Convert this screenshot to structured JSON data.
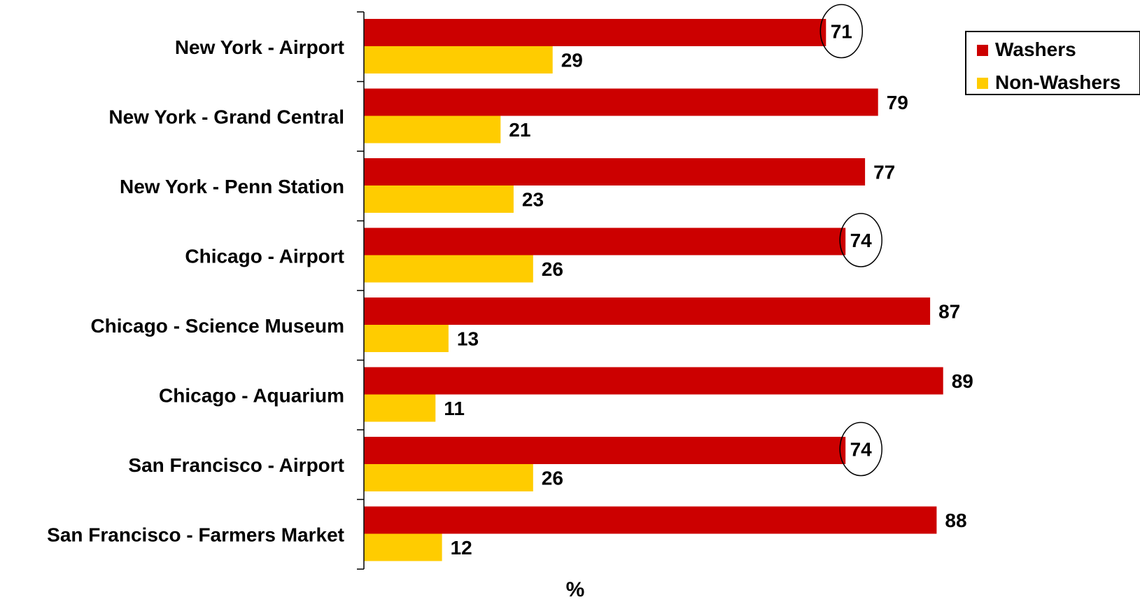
{
  "chart_data": {
    "type": "bar",
    "orientation": "horizontal",
    "categories": [
      "New York - Airport",
      "New York - Grand Central",
      "New York - Penn Station",
      "Chicago - Airport",
      "Chicago - Science Museum",
      "Chicago - Aquarium",
      "San Francisco - Airport",
      "San Francisco - Farmers Market"
    ],
    "series": [
      {
        "name": "Washers",
        "color": "#CC0000",
        "values": [
          71,
          79,
          77,
          74,
          87,
          89,
          74,
          88
        ]
      },
      {
        "name": "Non-Washers",
        "color": "#FFCC00",
        "values": [
          29,
          21,
          23,
          26,
          13,
          11,
          26,
          12
        ]
      }
    ],
    "highlighted": {
      "series": "Washers",
      "categories": [
        "New York - Airport",
        "Chicago - Airport",
        "San Francisco - Airport"
      ]
    },
    "xlabel": "%",
    "ylabel": "",
    "xlim": [
      0,
      100
    ],
    "grid": false,
    "legend_position": "top-right"
  }
}
